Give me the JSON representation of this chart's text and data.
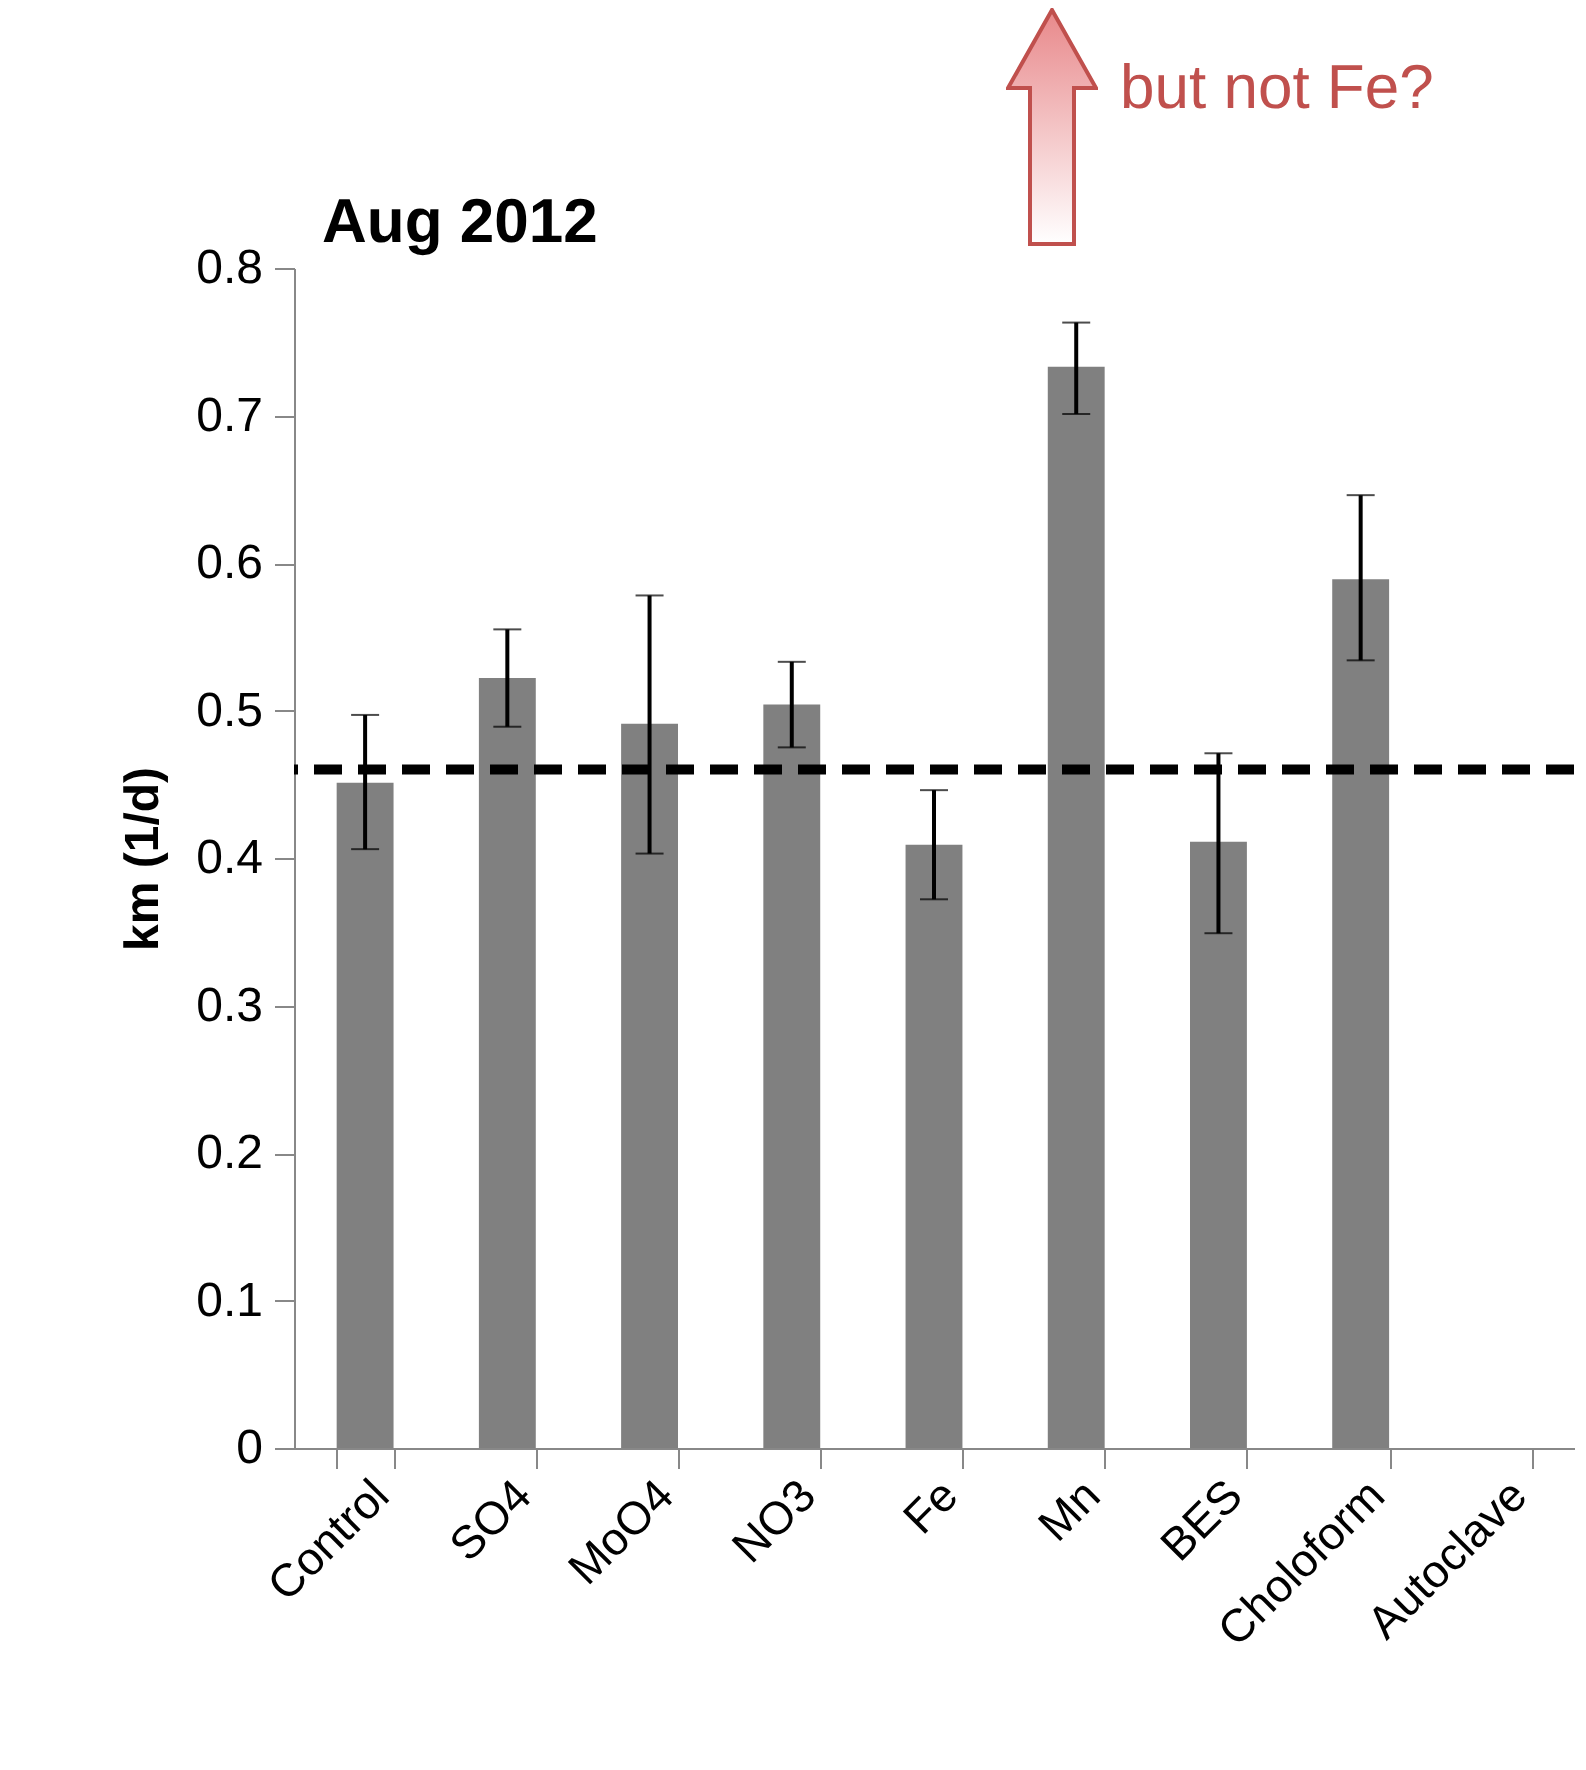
{
  "chart_data": {
    "type": "bar",
    "title": "Aug 2012",
    "ylabel": "km  (1/d)",
    "categories": [
      "Control",
      "SO4",
      "MoO4",
      "NO3",
      "Fe",
      "Mn",
      "BES",
      "Choloform",
      "Autoclave"
    ],
    "series": [
      {
        "color": "#808080",
        "values": [
          0.451,
          0.522,
          0.491,
          0.504,
          0.409,
          0.733,
          0.411,
          0.589,
          0
        ],
        "errors": [
          [
            0.406,
            0.497
          ],
          [
            0.489,
            0.555
          ],
          [
            0.403,
            0.578
          ],
          [
            0.475,
            0.533
          ],
          [
            0.372,
            0.446
          ],
          [
            0.701,
            0.763
          ],
          [
            0.349,
            0.471
          ],
          [
            0.534,
            0.646
          ],
          null
        ]
      }
    ],
    "ylim": [
      0,
      0.8
    ],
    "yticks": [
      0,
      0.1,
      0.2,
      0.3,
      0.4,
      0.5,
      0.6,
      0.7,
      0.8
    ],
    "grid": false,
    "ref_lines": [
      {
        "axis": "y",
        "value": 0.46,
        "color": "#000000",
        "line_style": "dashed"
      }
    ],
    "annotations": [
      "but not Fe?"
    ]
  }
}
